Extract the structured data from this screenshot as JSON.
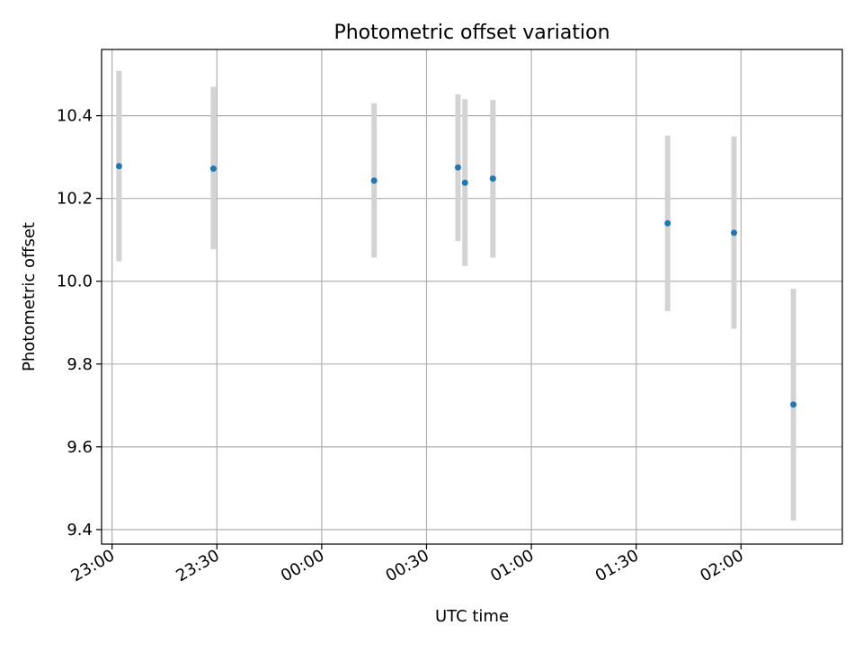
{
  "chart_data": {
    "type": "scatter",
    "title": "Photometric offset variation",
    "xlabel": "UTC time",
    "ylabel": "Photometric offset",
    "x_axis_type": "time",
    "xlim": [
      "22:57",
      "02:29"
    ],
    "ylim": [
      9.365,
      10.56
    ],
    "x_ticks": [
      "23:00",
      "23:30",
      "00:00",
      "00:30",
      "01:00",
      "01:30",
      "02:00"
    ],
    "y_ticks": [
      "9.4",
      "9.6",
      "9.8",
      "10.0",
      "10.2",
      "10.4"
    ],
    "grid": true,
    "legend": "none",
    "series": [
      {
        "style": "points-with-error-bars",
        "color": "#1f77b4",
        "error_bar_color": "#d3d3d3",
        "points": [
          {
            "x": "23:02",
            "y": 10.278,
            "yerr_low": 10.048,
            "yerr_high": 10.508
          },
          {
            "x": "23:29",
            "y": 10.272,
            "yerr_low": 10.077,
            "yerr_high": 10.47
          },
          {
            "x": "00:15",
            "y": 10.243,
            "yerr_low": 10.057,
            "yerr_high": 10.43
          },
          {
            "x": "00:39",
            "y": 10.275,
            "yerr_low": 10.097,
            "yerr_high": 10.452
          },
          {
            "x": "00:41",
            "y": 10.238,
            "yerr_low": 10.037,
            "yerr_high": 10.44
          },
          {
            "x": "00:49",
            "y": 10.248,
            "yerr_low": 10.057,
            "yerr_high": 10.438
          },
          {
            "x": "01:39",
            "y": 10.14,
            "yerr_low": 9.928,
            "yerr_high": 10.352
          },
          {
            "x": "01:58",
            "y": 10.117,
            "yerr_low": 9.885,
            "yerr_high": 10.35
          },
          {
            "x": "02:15",
            "y": 9.702,
            "yerr_low": 9.422,
            "yerr_high": 9.982
          }
        ]
      }
    ]
  }
}
